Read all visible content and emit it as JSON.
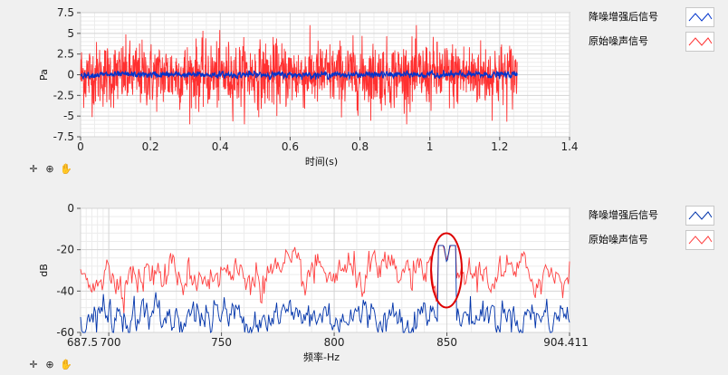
{
  "chart_data": [
    {
      "type": "line",
      "xlabel": "时间(s)",
      "ylabel": "Pa",
      "xlim": [
        0,
        1.4
      ],
      "ylim": [
        -7.5,
        7.5
      ],
      "x_ticks": [
        "0",
        "0.2",
        "0.4",
        "0.6",
        "0.8",
        "1",
        "1.2",
        "1.4"
      ],
      "y_ticks": [
        "7.5",
        "5",
        "2.5",
        "0",
        "-2.5",
        "-5",
        "-7.5"
      ],
      "grid": true,
      "legend_position": "right",
      "series": [
        {
          "name": "降噪增强后信号",
          "color": "#0033cc",
          "x_range": [
            0,
            1.25
          ],
          "amplitude_approx": 0.4,
          "description_values": {
            "mean": 0,
            "peak": 0.6
          }
        },
        {
          "name": "原始噪声信号",
          "color": "#ff3030",
          "x_range": [
            0,
            1.25
          ],
          "amplitude_approx": 2.6,
          "description_values": {
            "mean": 0,
            "peak": 6
          }
        }
      ]
    },
    {
      "type": "line",
      "xlabel": "频率-Hz",
      "ylabel": "dB",
      "xlim": [
        687.5,
        904.411
      ],
      "ylim": [
        -60,
        0
      ],
      "x_ticks": [
        "687.5",
        "700",
        "750",
        "800",
        "850",
        "904.411"
      ],
      "y_ticks": [
        "0",
        "-20",
        "-40",
        "-60"
      ],
      "grid": true,
      "legend_position": "right",
      "series": [
        {
          "name": "降噪增强后信号",
          "color": "#0033aa",
          "level_approx": -52,
          "peak": {
            "x": 850,
            "y": -27
          }
        },
        {
          "name": "原始噪声信号",
          "color": "#ff4040",
          "level_approx": -32,
          "peak": {
            "x": 850,
            "y": -27
          }
        }
      ],
      "annotation": {
        "shape": "ellipse",
        "color": "#dd0000",
        "x_center": 850
      }
    }
  ],
  "toolbar_icons": [
    "cursor-icon",
    "zoom-icon",
    "pan-hand-icon"
  ]
}
